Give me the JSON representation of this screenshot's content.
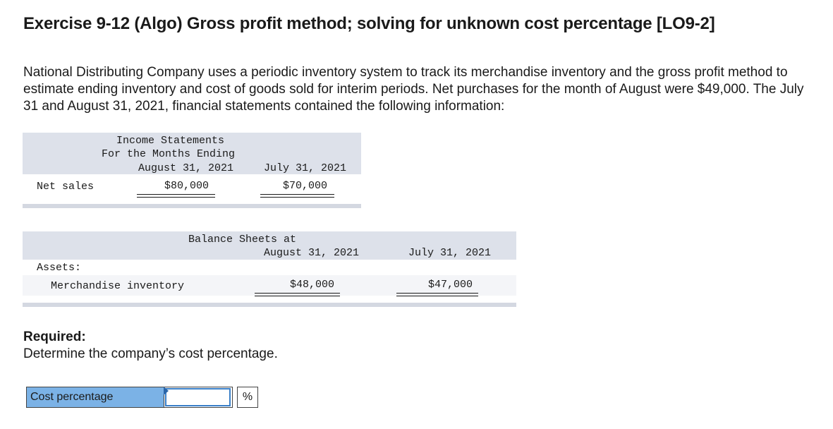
{
  "exercise": {
    "title": "Exercise 9-12 (Algo) Gross profit method; solving for unknown cost percentage [LO9-2]",
    "intro": "National Distributing Company uses a periodic inventory system to track its merchandise inventory and the gross profit method to estimate ending inventory and cost of goods sold for interim periods. Net purchases for the month of August were $49,000. The July 31 and August 31, 2021, financial statements contained the following information:"
  },
  "income_statement": {
    "heading_line1": "Income Statements",
    "heading_line2": "For the Months Ending",
    "col1": "August 31, 2021",
    "col2": "July 31, 2021",
    "row_label": "Net sales",
    "val1": "$80,000",
    "val2": "$70,000"
  },
  "balance_sheet": {
    "heading": "Balance Sheets at",
    "col1": "August 31, 2021",
    "col2": "July 31, 2021",
    "section": "Assets:",
    "row_label": "Merchandise inventory",
    "val1": "$48,000",
    "val2": "$47,000"
  },
  "required": {
    "label": "Required:",
    "text": "Determine the company’s cost percentage."
  },
  "answer": {
    "label": "Cost percentage",
    "value": "",
    "unit": "%"
  }
}
